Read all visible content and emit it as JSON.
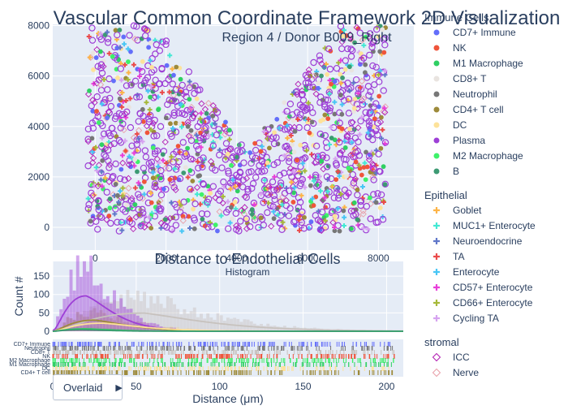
{
  "chart_data": [
    {
      "type": "scatter",
      "title": "Vascular Common Coordinate Framework 2D Visualization",
      "subtitle": "Region 4 / Donor B009_Right",
      "xlabel": "",
      "ylabel": "",
      "xlim": [
        -1200,
        9000
      ],
      "ylim": [
        -900,
        8050
      ],
      "x_ticks": [
        0,
        2000,
        4000,
        6000,
        8000
      ],
      "y_ticks": [
        0,
        2000,
        4000,
        6000,
        8000
      ],
      "x_tick_labels": [
        "0",
        "2000",
        "4000",
        "6000",
        "8000"
      ],
      "y_tick_labels": [
        "0",
        "2000",
        "4000",
        "6000",
        "8000"
      ],
      "grid": true,
      "legend_placement": "right",
      "legend_groups": [
        {
          "title": "Immune Cells",
          "items": [
            {
              "name": "CD7+ Immune",
              "color": "#636efa",
              "symbol": "circle"
            },
            {
              "name": "NK",
              "color": "#ef553b",
              "symbol": "circle"
            },
            {
              "name": "M1 Macrophage",
              "color": "#2fcf63",
              "symbol": "circle"
            },
            {
              "name": "CD8+ T",
              "color": "#e9e4e0",
              "symbol": "circle"
            },
            {
              "name": "Neutrophil",
              "color": "#777777",
              "symbol": "circle"
            },
            {
              "name": "CD4+ T cell",
              "color": "#9d8a3a",
              "symbol": "circle"
            },
            {
              "name": "DC",
              "color": "#fde29a",
              "symbol": "circle"
            },
            {
              "name": "Plasma",
              "color": "#9d3fd6",
              "symbol": "circle"
            },
            {
              "name": "M2 Macrophage",
              "color": "#3ef16a",
              "symbol": "circle"
            },
            {
              "name": "B",
              "color": "#3d9a73",
              "symbol": "circle"
            }
          ]
        },
        {
          "title": "Epithelial",
          "items": [
            {
              "name": "Goblet",
              "color": "#fdb447",
              "symbol": "cross"
            },
            {
              "name": "MUC1+ Enterocyte",
              "color": "#43e8d3",
              "symbol": "cross"
            },
            {
              "name": "Neuroendocrine",
              "color": "#6077c9",
              "symbol": "cross"
            },
            {
              "name": "TA",
              "color": "#ea4b4b",
              "symbol": "cross"
            },
            {
              "name": "Enterocyte",
              "color": "#49c6f5",
              "symbol": "cross"
            },
            {
              "name": "CD57+ Enterocyte",
              "color": "#e83fd9",
              "symbol": "cross"
            },
            {
              "name": "CD66+ Enterocyte",
              "color": "#a6b93a",
              "symbol": "cross"
            },
            {
              "name": "Cycling TA",
              "color": "#d6a3f0",
              "symbol": "cross"
            }
          ]
        },
        {
          "title": "stromal",
          "items": [
            {
              "name": "ICC",
              "color": "#b21ab2",
              "symbol": "diamond-open"
            },
            {
              "name": "Nerve",
              "color": "#e89fa8",
              "symbol": "diamond-open"
            }
          ]
        }
      ]
    },
    {
      "type": "histogram",
      "title": "Distance to Endothelial Cells",
      "subtitle": "Histogram",
      "xlabel": "Distance (μm)",
      "ylabel": "Count #",
      "xlim": [
        0,
        210
      ],
      "ylim": [
        0,
        190
      ],
      "x_ticks": [
        0,
        50,
        100,
        150,
        200
      ],
      "x_tick_labels": [
        "0",
        "50",
        "100",
        "150",
        "200"
      ],
      "y_ticks": [
        0,
        50,
        100,
        150
      ],
      "y_tick_labels": [
        "0",
        "50",
        "100",
        "150"
      ],
      "bar_mode": "Overlaid",
      "series": [
        {
          "name": "Plasma",
          "color": "#9d3fd6",
          "peak_x": 20,
          "peak_y": 175,
          "spread": 25
        },
        {
          "name": "CD8+ T",
          "color": "#c7c2be",
          "peak_x": 55,
          "peak_y": 90,
          "spread": 40
        },
        {
          "name": "CD4+ T cell",
          "color": "#9d8a3a",
          "peak_x": 25,
          "peak_y": 55,
          "spread": 30
        },
        {
          "name": "DC",
          "color": "#fde29a",
          "peak_x": 30,
          "peak_y": 40,
          "spread": 35
        },
        {
          "name": "M1 Macrophage",
          "color": "#2fcf63",
          "peak_x": 20,
          "peak_y": 12,
          "spread": 25
        },
        {
          "name": "B",
          "color": "#3d9a73",
          "peak_x": 18,
          "peak_y": 8,
          "spread": 20
        }
      ],
      "rug_categories": [
        "CD7+ Immune",
        "Neutrophil",
        "CD8+ T",
        "NK",
        "M2 Macrophage",
        "M1 Macrophage",
        "DC",
        "CD4+ T cell"
      ]
    }
  ],
  "controls": {
    "bar_mode_button": "Overlaid",
    "arrow_glyph": "▶"
  }
}
